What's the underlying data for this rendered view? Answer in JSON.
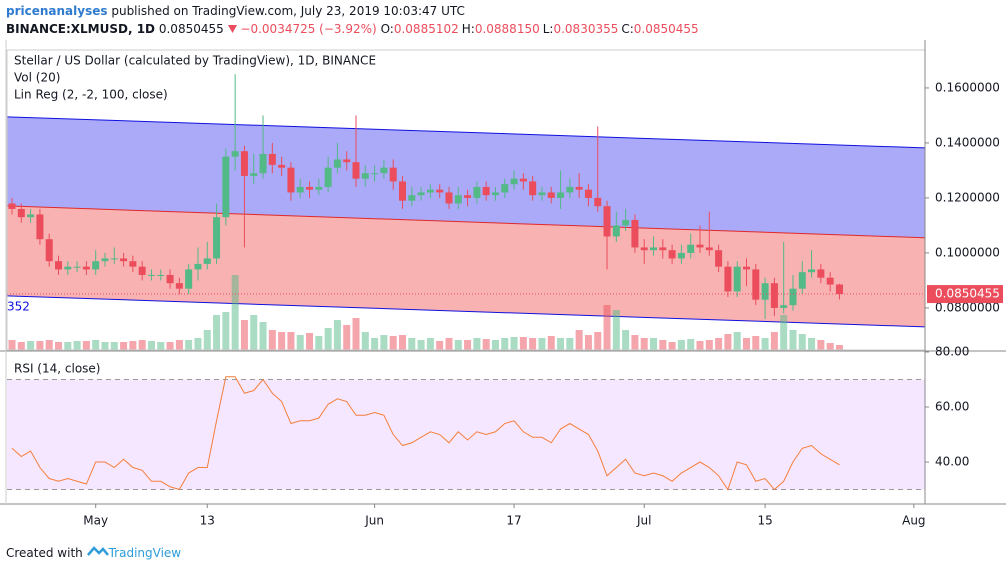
{
  "header": {
    "author": "pricenanalyses",
    "published": "published on TradingView.com, July 23, 2019 10:03:47 UTC",
    "symbol": "BINANCE:XLMUSD, 1D",
    "last": "0.0850455",
    "change": "−0.0034725 (−3.92%)",
    "fields": [
      {
        "key": "O:",
        "value": "0.0885102"
      },
      {
        "key": "H:",
        "value": "0.0888150"
      },
      {
        "key": "L:",
        "value": "0.0830355"
      },
      {
        "key": "C:",
        "value": "0.0850455"
      }
    ]
  },
  "footer": {
    "created": "Created with",
    "brand": "TradingView"
  },
  "chart_data": [
    {
      "type": "candlestick",
      "title": "Stellar / US Dollar (calculated by TradingView), 1D, BINANCE",
      "volume_label": "Vol (20)",
      "up_color": "#53b987",
      "down_color": "#eb4d5c",
      "xlim": [
        -0.54,
        98.2
      ],
      "xticks": [
        {
          "value": 9,
          "label": "May"
        },
        {
          "value": 21,
          "label": "13"
        },
        {
          "value": 39,
          "label": "Jun"
        },
        {
          "value": 54,
          "label": "17"
        },
        {
          "value": 68,
          "label": "Jul"
        },
        {
          "value": 81,
          "label": "15"
        },
        {
          "value": 97,
          "label": "Aug"
        }
      ],
      "ylim": [
        0.0647,
        0.1738
      ],
      "yticks": [
        {
          "value": 0.16,
          "label": "0.1600000"
        },
        {
          "value": 0.14,
          "label": "0.1400000"
        },
        {
          "value": 0.12,
          "label": "0.1200000"
        },
        {
          "value": 0.1,
          "label": "0.1000000"
        },
        {
          "value": 0.08,
          "label": "0.0800000"
        }
      ],
      "linreg": {
        "label": "Lin Reg (2, -2, 100, close)",
        "edge_label": "352",
        "upper": [
          0.1495,
          0.1382
        ],
        "middle": [
          0.1171,
          0.1055
        ],
        "lower": [
          0.0844,
          0.0731
        ]
      },
      "open": [
        0.118,
        0.116,
        0.113,
        0.114,
        0.105,
        0.097,
        0.094,
        0.095,
        0.095,
        0.094,
        0.097,
        0.098,
        0.098,
        0.097,
        0.095,
        0.092,
        0.092,
        0.092,
        0.089,
        0.087,
        0.094,
        0.096,
        0.098,
        0.113,
        0.135,
        0.137,
        0.128,
        0.129,
        0.136,
        0.132,
        0.131,
        0.122,
        0.124,
        0.123,
        0.124,
        0.131,
        0.134,
        0.133,
        0.127,
        0.129,
        0.129,
        0.131,
        0.126,
        0.119,
        0.121,
        0.122,
        0.123,
        0.122,
        0.118,
        0.121,
        0.12,
        0.124,
        0.121,
        0.122,
        0.125,
        0.127,
        0.126,
        0.121,
        0.122,
        0.12,
        0.122,
        0.124,
        0.123,
        0.12,
        0.117,
        0.106,
        0.11,
        0.112,
        0.102,
        0.101,
        0.102,
        0.101,
        0.098,
        0.1,
        0.103,
        0.102,
        0.101,
        0.095,
        0.086,
        0.095,
        0.094,
        0.083,
        0.089,
        0.08,
        0.081,
        0.087,
        0.093,
        0.094,
        0.091,
        0.0885102
      ],
      "high": [
        0.12,
        0.118,
        0.116,
        0.116,
        0.107,
        0.099,
        0.097,
        0.097,
        0.097,
        0.101,
        0.1,
        0.102,
        0.1,
        0.099,
        0.097,
        0.094,
        0.094,
        0.094,
        0.091,
        0.096,
        0.102,
        0.104,
        0.118,
        0.138,
        0.165,
        0.139,
        0.136,
        0.15,
        0.14,
        0.135,
        0.133,
        0.127,
        0.126,
        0.127,
        0.135,
        0.14,
        0.137,
        0.15,
        0.132,
        0.132,
        0.134,
        0.134,
        0.128,
        0.124,
        0.124,
        0.125,
        0.125,
        0.124,
        0.124,
        0.123,
        0.126,
        0.126,
        0.124,
        0.127,
        0.13,
        0.129,
        0.128,
        0.124,
        0.124,
        0.13,
        0.127,
        0.129,
        0.125,
        0.146,
        0.119,
        0.115,
        0.116,
        0.114,
        0.105,
        0.106,
        0.105,
        0.103,
        0.103,
        0.107,
        0.11,
        0.115,
        0.103,
        0.097,
        0.097,
        0.098,
        0.096,
        0.091,
        0.091,
        0.104,
        0.092,
        0.097,
        0.101,
        0.096,
        0.093,
        0.088815
      ],
      "low": [
        0.114,
        0.111,
        0.111,
        0.103,
        0.095,
        0.092,
        0.092,
        0.093,
        0.092,
        0.092,
        0.095,
        0.096,
        0.095,
        0.093,
        0.09,
        0.09,
        0.09,
        0.087,
        0.085,
        0.085,
        0.09,
        0.094,
        0.096,
        0.11,
        0.13,
        0.102,
        0.125,
        0.127,
        0.129,
        0.128,
        0.119,
        0.12,
        0.12,
        0.121,
        0.122,
        0.129,
        0.13,
        0.124,
        0.124,
        0.126,
        0.127,
        0.123,
        0.116,
        0.117,
        0.119,
        0.12,
        0.12,
        0.116,
        0.116,
        0.117,
        0.118,
        0.119,
        0.119,
        0.12,
        0.123,
        0.123,
        0.119,
        0.119,
        0.118,
        0.116,
        0.12,
        0.12,
        0.117,
        0.115,
        0.094,
        0.104,
        0.108,
        0.1,
        0.096,
        0.099,
        0.098,
        0.096,
        0.096,
        0.098,
        0.1,
        0.099,
        0.093,
        0.084,
        0.084,
        0.088,
        0.081,
        0.076,
        0.077,
        0.078,
        0.079,
        0.085,
        0.091,
        0.089,
        0.086,
        0.0830355
      ],
      "close": [
        0.116,
        0.113,
        0.114,
        0.105,
        0.097,
        0.094,
        0.095,
        0.095,
        0.094,
        0.097,
        0.098,
        0.098,
        0.097,
        0.095,
        0.092,
        0.092,
        0.092,
        0.089,
        0.087,
        0.094,
        0.096,
        0.098,
        0.113,
        0.135,
        0.137,
        0.128,
        0.129,
        0.136,
        0.132,
        0.131,
        0.122,
        0.124,
        0.123,
        0.124,
        0.131,
        0.134,
        0.133,
        0.127,
        0.129,
        0.129,
        0.131,
        0.126,
        0.119,
        0.121,
        0.122,
        0.123,
        0.122,
        0.118,
        0.121,
        0.12,
        0.124,
        0.121,
        0.122,
        0.125,
        0.127,
        0.126,
        0.121,
        0.122,
        0.12,
        0.122,
        0.124,
        0.123,
        0.12,
        0.117,
        0.106,
        0.11,
        0.112,
        0.102,
        0.101,
        0.102,
        0.101,
        0.098,
        0.1,
        0.103,
        0.102,
        0.101,
        0.095,
        0.086,
        0.095,
        0.094,
        0.083,
        0.089,
        0.08,
        0.081,
        0.087,
        0.093,
        0.094,
        0.091,
        0.0885102,
        0.0850455
      ],
      "volume": [
        10,
        8,
        9,
        9,
        10,
        8,
        8,
        9,
        9,
        10,
        8,
        8,
        8,
        9,
        10,
        9,
        8,
        8,
        10,
        10,
        12,
        20,
        35,
        38,
        75,
        30,
        35,
        28,
        20,
        18,
        18,
        15,
        17,
        14,
        22,
        30,
        25,
        32,
        18,
        12,
        15,
        14,
        15,
        12,
        10,
        12,
        9,
        12,
        10,
        10,
        12,
        11,
        10,
        12,
        13,
        13,
        12,
        12,
        14,
        12,
        12,
        20,
        15,
        18,
        45,
        40,
        20,
        15,
        12,
        12,
        10,
        8,
        10,
        11,
        9,
        10,
        12,
        16,
        18,
        12,
        14,
        12,
        18,
        35,
        20,
        16,
        12,
        10,
        7,
        5
      ]
    },
    {
      "type": "line",
      "title": "RSI (14, close)",
      "color": "#f57f3b",
      "ylim": [
        25.1,
        80
      ],
      "bands": [
        30,
        70
      ],
      "yticks": [
        {
          "value": 80,
          "label": "80.00"
        },
        {
          "value": 60,
          "label": "60.00"
        },
        {
          "value": 40,
          "label": "40.00"
        }
      ],
      "values": [
        45,
        42,
        44,
        38,
        34,
        33,
        34,
        33,
        32,
        40,
        40,
        38,
        41,
        38,
        37,
        33,
        33,
        31,
        30,
        36,
        38,
        38,
        55,
        71,
        71,
        65,
        66,
        70,
        65,
        62,
        54,
        55,
        55,
        56,
        61,
        63,
        62,
        57,
        57,
        58,
        57,
        50,
        46,
        47,
        49,
        51,
        50,
        47,
        51,
        48,
        51,
        50,
        51,
        54,
        55,
        51,
        49,
        49,
        47,
        52,
        54,
        52,
        50,
        44,
        35,
        38,
        41,
        36,
        35,
        36,
        35,
        33,
        36,
        38,
        40,
        38,
        35,
        30,
        40,
        39,
        33,
        34,
        30,
        33,
        40,
        45,
        46,
        43,
        41,
        39
      ]
    }
  ]
}
